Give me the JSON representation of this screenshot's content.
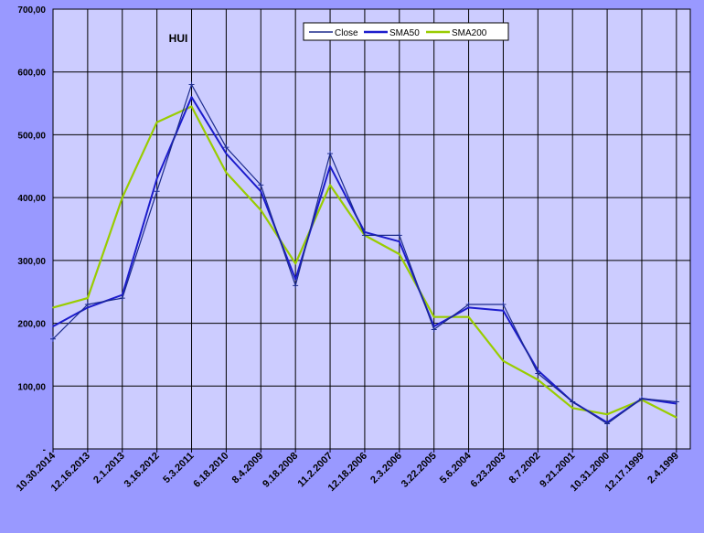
{
  "colors": {
    "background": "#9999ff",
    "plot_area": "#ccccff",
    "grid": "#000000",
    "close": "#1b2a8c",
    "sma50": "#1c1ccc",
    "sma200": "#99cc00"
  },
  "chart_data": {
    "type": "line",
    "title": "HUI",
    "xlabel": "",
    "ylabel": "",
    "x_direction": "reversed (newest date on the left)",
    "ylim": [
      0,
      700
    ],
    "y_tick_labels": [
      "-",
      "100,00",
      "200,00",
      "300,00",
      "400,00",
      "500,00",
      "600,00",
      "700,00"
    ],
    "x_tick_labels": [
      "10.30.2014",
      "12.16.2013",
      "2.1.2013",
      "3.16.2012",
      "5.3.2011",
      "6.18.2010",
      "8.4.2009",
      "9.18.2008",
      "11.2.2007",
      "12.18.2006",
      "2.3.2006",
      "3.22.2005",
      "5.6.2004",
      "6.23.2003",
      "8.7.2002",
      "9.21.2001",
      "10.31.2000",
      "12.17.1999",
      "2.4.1999"
    ],
    "grid": true,
    "legend_position": "top-center",
    "series": [
      {
        "name": "Close",
        "style": "line with markers",
        "x": [
          "10.30.2014",
          "12.16.2013",
          "2.1.2013",
          "3.16.2012",
          "5.3.2011",
          "6.18.2010",
          "8.4.2009",
          "9.18.2008",
          "11.2.2007",
          "12.18.2006",
          "2.3.2006",
          "3.22.2005",
          "5.6.2004",
          "6.23.2003",
          "8.7.2002",
          "9.21.2001",
          "10.31.2000",
          "12.17.1999",
          "2.4.1999"
        ],
        "values": [
          175,
          230,
          240,
          410,
          580,
          480,
          420,
          260,
          470,
          340,
          340,
          190,
          230,
          230,
          120,
          75,
          40,
          80,
          75
        ]
      },
      {
        "name": "SMA50",
        "style": "line",
        "x": [
          "10.30.2014",
          "12.16.2013",
          "2.1.2013",
          "3.16.2012",
          "5.3.2011",
          "6.18.2010",
          "8.4.2009",
          "9.18.2008",
          "11.2.2007",
          "12.18.2006",
          "2.3.2006",
          "3.22.2005",
          "5.6.2004",
          "6.23.2003",
          "8.7.2002",
          "9.21.2001",
          "10.31.2000",
          "12.17.1999",
          "2.4.1999"
        ],
        "values": [
          195,
          225,
          245,
          430,
          560,
          470,
          410,
          270,
          450,
          345,
          330,
          195,
          225,
          220,
          125,
          75,
          42,
          80,
          72
        ]
      },
      {
        "name": "SMA200",
        "style": "line",
        "x": [
          "10.30.2014",
          "12.16.2013",
          "2.1.2013",
          "3.16.2012",
          "5.3.2011",
          "6.18.2010",
          "8.4.2009",
          "9.18.2008",
          "11.2.2007",
          "12.18.2006",
          "2.3.2006",
          "3.22.2005",
          "5.6.2004",
          "6.23.2003",
          "8.7.2002",
          "9.21.2001",
          "10.31.2000",
          "12.17.1999",
          "2.4.1999"
        ],
        "values": [
          225,
          240,
          400,
          520,
          545,
          440,
          380,
          295,
          420,
          340,
          310,
          210,
          210,
          140,
          110,
          65,
          55,
          78,
          50
        ]
      }
    ]
  }
}
